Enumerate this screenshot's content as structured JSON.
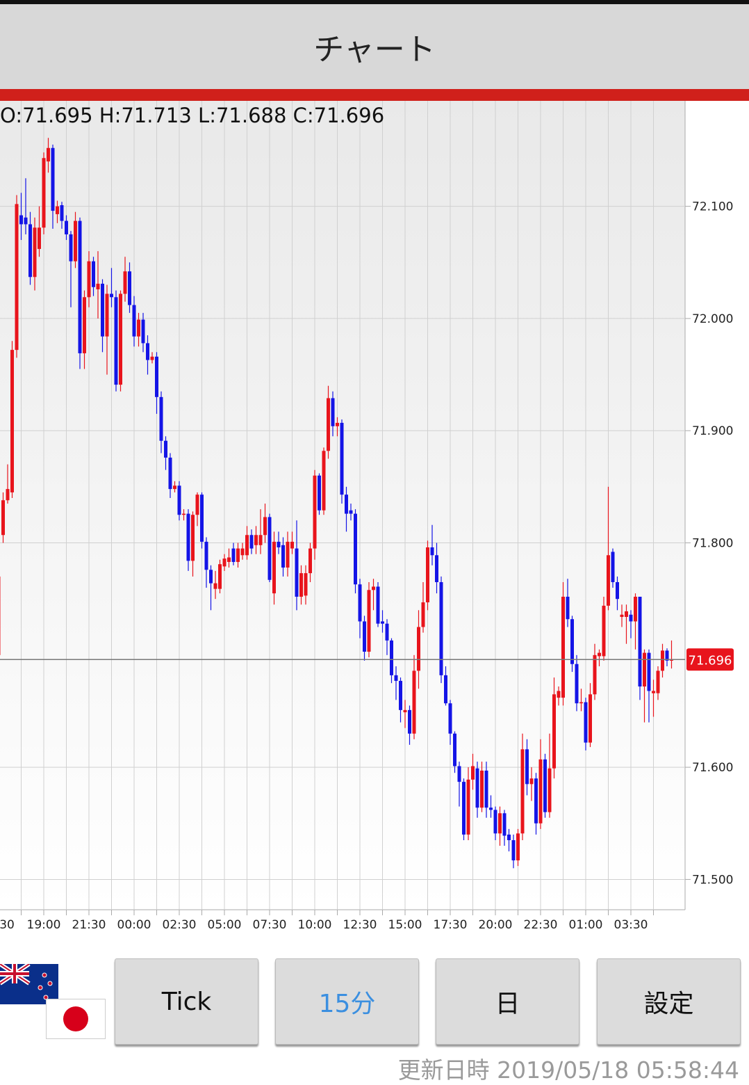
{
  "header": {
    "title": "チャート"
  },
  "chart_data": {
    "type": "candlestick",
    "ohlc_text": "O:71.695 H:71.713 L:71.688 C:71.696",
    "last_price": 71.696,
    "up_color": "#e8141c",
    "down_color": "#1414e6",
    "grid": true,
    "ylim": [
      71.473,
      72.194
    ],
    "yticks": [
      {
        "value": 71.5,
        "label": "71.500"
      },
      {
        "value": 71.6,
        "label": "71.600"
      },
      {
        "value": 71.8,
        "label": "71.800"
      },
      {
        "value": 71.9,
        "label": "71.900"
      },
      {
        "value": 72.0,
        "label": "72.000"
      },
      {
        "value": 72.1,
        "label": "72.100"
      }
    ],
    "categories": [
      "30",
      null,
      null,
      null,
      null,
      null,
      null,
      null,
      null,
      null,
      "19:00",
      null,
      null,
      null,
      null,
      null,
      null,
      null,
      null,
      null,
      "21:30",
      null,
      null,
      null,
      null,
      null,
      null,
      null,
      null,
      null,
      "00:00",
      null,
      null,
      null,
      null,
      null,
      null,
      null,
      null,
      null,
      "02:30",
      null,
      null,
      null,
      null,
      null,
      null,
      null,
      null,
      null,
      "05:00",
      null,
      null,
      null,
      null,
      null,
      null,
      null,
      null,
      null,
      "07:30",
      null,
      null,
      null,
      null,
      null,
      null,
      null,
      null,
      null,
      "10:00",
      null,
      null,
      null,
      null,
      null,
      null,
      null,
      null,
      null,
      "12:30",
      null,
      null,
      null,
      null,
      null,
      null,
      null,
      null,
      null,
      "15:00",
      null,
      null,
      null,
      null,
      null,
      null,
      null,
      null,
      null,
      "17:30",
      null,
      null,
      null,
      null,
      null,
      null,
      null,
      null,
      null,
      "20:00",
      null,
      null,
      null,
      null,
      null,
      null,
      null,
      null,
      null,
      "22:30",
      null,
      null,
      null,
      null,
      null,
      null,
      null,
      null,
      null,
      "01:00",
      null,
      null,
      null,
      null,
      null,
      null,
      null,
      null,
      null,
      "03:30",
      null,
      null,
      null,
      null,
      null,
      null,
      null,
      null,
      null
    ],
    "ohlc": [
      [
        71.7,
        71.78,
        71.69,
        71.77
      ],
      [
        71.807,
        71.845,
        71.8,
        71.838
      ],
      [
        71.838,
        71.87,
        71.835,
        71.848
      ],
      [
        71.845,
        71.98,
        71.84,
        71.972
      ],
      [
        71.972,
        72.11,
        71.965,
        72.102
      ],
      [
        72.092,
        72.112,
        72.07,
        72.084
      ],
      [
        72.09,
        72.125,
        72.075,
        72.084
      ],
      [
        72.084,
        72.095,
        72.03,
        72.037
      ],
      [
        72.037,
        72.09,
        72.025,
        72.081
      ],
      [
        72.062,
        72.1,
        72.055,
        72.081
      ],
      [
        72.081,
        72.148,
        72.075,
        72.143
      ],
      [
        72.14,
        72.161,
        72.13,
        72.152
      ],
      [
        72.152,
        72.155,
        72.08,
        72.096
      ],
      [
        72.093,
        72.105,
        72.085,
        72.1
      ],
      [
        72.101,
        72.104,
        72.08,
        72.087
      ],
      [
        72.087,
        72.092,
        72.07,
        72.075
      ],
      [
        72.075,
        72.078,
        72.01,
        72.051
      ],
      [
        72.051,
        72.095,
        72.045,
        72.087
      ],
      [
        72.087,
        72.09,
        71.955,
        71.969
      ],
      [
        71.969,
        72.025,
        71.955,
        72.019
      ],
      [
        72.019,
        72.06,
        72.01,
        72.051
      ],
      [
        72.051,
        72.055,
        72.02,
        72.028
      ],
      [
        72.026,
        72.06,
        72.0,
        72.031
      ],
      [
        72.031,
        72.035,
        71.97,
        71.984
      ],
      [
        71.984,
        72.03,
        71.95,
        72.022
      ],
      [
        72.022,
        72.045,
        72.01,
        72.019
      ],
      [
        72.019,
        72.025,
        71.935,
        71.941
      ],
      [
        71.941,
        72.025,
        71.935,
        72.022
      ],
      [
        72.022,
        72.055,
        72.015,
        72.042
      ],
      [
        72.042,
        72.05,
        72.005,
        72.012
      ],
      [
        72.012,
        72.02,
        71.975,
        71.984
      ],
      [
        71.984,
        72.005,
        71.975,
        71.999
      ],
      [
        71.999,
        72.005,
        71.97,
        71.978
      ],
      [
        71.978,
        71.985,
        71.95,
        71.963
      ],
      [
        71.963,
        71.97,
        71.96,
        71.966
      ],
      [
        71.966,
        71.97,
        71.915,
        71.93
      ],
      [
        71.93,
        71.935,
        71.88,
        71.891
      ],
      [
        71.891,
        71.895,
        71.865,
        71.876
      ],
      [
        71.876,
        71.88,
        71.84,
        71.848
      ],
      [
        71.848,
        71.855,
        71.845,
        71.851
      ],
      [
        71.851,
        71.855,
        71.82,
        71.825
      ],
      [
        71.825,
        71.83,
        71.82,
        71.826
      ],
      [
        71.826,
        71.83,
        71.775,
        71.784
      ],
      [
        71.784,
        71.828,
        71.77,
        71.825
      ],
      [
        71.825,
        71.845,
        71.815,
        71.843
      ],
      [
        71.843,
        71.845,
        71.795,
        71.801
      ],
      [
        71.801,
        71.805,
        71.76,
        71.776
      ],
      [
        71.776,
        71.78,
        71.74,
        71.764
      ],
      [
        71.759,
        71.775,
        71.75,
        71.764
      ],
      [
        71.759,
        71.785,
        71.755,
        71.781
      ],
      [
        71.779,
        71.79,
        71.775,
        71.786
      ],
      [
        71.783,
        71.795,
        71.778,
        71.787
      ],
      [
        71.795,
        71.8,
        71.78,
        71.783
      ],
      [
        71.783,
        71.8,
        71.778,
        71.795
      ],
      [
        71.789,
        71.8,
        71.785,
        71.795
      ],
      [
        71.789,
        71.815,
        71.785,
        71.807
      ],
      [
        71.807,
        71.812,
        71.79,
        71.795
      ],
      [
        71.798,
        71.815,
        71.79,
        71.807
      ],
      [
        71.798,
        71.83,
        71.79,
        71.807
      ],
      [
        71.807,
        71.835,
        71.8,
        71.823
      ],
      [
        71.823,
        71.826,
        71.765,
        71.767
      ],
      [
        71.755,
        71.81,
        71.745,
        71.801
      ],
      [
        71.801,
        71.81,
        71.79,
        71.796
      ],
      [
        71.798,
        71.805,
        71.77,
        71.778
      ],
      [
        71.778,
        71.81,
        71.77,
        71.801
      ],
      [
        71.795,
        71.81,
        71.79,
        71.801
      ],
      [
        71.795,
        71.82,
        71.74,
        71.752
      ],
      [
        71.752,
        71.78,
        71.745,
        71.773
      ],
      [
        71.753,
        71.78,
        71.745,
        71.773
      ],
      [
        71.773,
        71.8,
        71.765,
        71.795
      ],
      [
        71.795,
        71.865,
        71.785,
        71.86
      ],
      [
        71.86,
        71.862,
        71.825,
        71.829
      ],
      [
        71.829,
        71.885,
        71.825,
        71.882
      ],
      [
        71.882,
        71.94,
        71.875,
        71.929
      ],
      [
        71.929,
        71.935,
        71.895,
        71.904
      ],
      [
        71.904,
        71.912,
        71.895,
        71.907
      ],
      [
        71.907,
        71.91,
        71.835,
        71.843
      ],
      [
        71.843,
        71.85,
        71.81,
        71.826
      ],
      [
        71.829,
        71.835,
        71.82,
        71.826
      ],
      [
        71.826,
        71.83,
        71.755,
        71.763
      ],
      [
        71.763,
        71.768,
        71.715,
        71.73
      ],
      [
        71.73,
        71.735,
        71.695,
        71.703
      ],
      [
        71.703,
        71.765,
        71.698,
        71.758
      ],
      [
        71.758,
        71.768,
        71.74,
        71.761
      ],
      [
        71.761,
        71.765,
        71.725,
        71.728
      ],
      [
        71.73,
        71.74,
        71.72,
        71.728
      ],
      [
        71.728,
        71.732,
        71.7,
        71.713
      ],
      [
        71.713,
        71.715,
        71.675,
        71.682
      ],
      [
        71.682,
        71.69,
        71.66,
        71.677
      ],
      [
        71.677,
        71.68,
        71.64,
        71.651
      ],
      [
        71.649,
        71.66,
        71.635,
        71.651
      ],
      [
        71.651,
        71.655,
        71.62,
        71.63
      ],
      [
        71.63,
        71.7,
        71.625,
        71.686
      ],
      [
        71.686,
        71.74,
        71.67,
        71.725
      ],
      [
        71.725,
        71.765,
        71.72,
        71.747
      ],
      [
        71.747,
        71.802,
        71.74,
        71.796
      ],
      [
        71.796,
        71.816,
        71.78,
        71.789
      ],
      [
        71.789,
        71.8,
        71.755,
        71.765
      ],
      [
        71.765,
        71.77,
        71.675,
        71.682
      ],
      [
        71.682,
        71.69,
        71.655,
        71.657
      ],
      [
        71.657,
        71.66,
        71.62,
        71.63
      ],
      [
        71.63,
        71.632,
        71.595,
        71.601
      ],
      [
        71.601,
        71.605,
        71.565,
        71.587
      ],
      [
        71.587,
        71.59,
        71.535,
        71.54
      ],
      [
        71.54,
        71.6,
        71.535,
        71.589
      ],
      [
        71.589,
        71.612,
        71.58,
        71.601
      ],
      [
        71.599,
        71.605,
        71.555,
        71.564
      ],
      [
        71.564,
        71.605,
        71.56,
        71.597
      ],
      [
        71.597,
        71.605,
        71.555,
        71.564
      ],
      [
        71.564,
        71.575,
        71.555,
        71.562
      ],
      [
        71.562,
        71.565,
        71.535,
        71.541
      ],
      [
        71.541,
        71.565,
        71.53,
        71.559
      ],
      [
        71.559,
        71.562,
        71.53,
        71.539
      ],
      [
        71.54,
        71.545,
        71.525,
        71.535
      ],
      [
        71.535,
        71.54,
        71.51,
        71.517
      ],
      [
        71.517,
        71.545,
        71.512,
        71.541
      ],
      [
        71.541,
        71.63,
        71.535,
        71.616
      ],
      [
        71.616,
        71.625,
        71.575,
        71.585
      ],
      [
        71.585,
        71.6,
        71.57,
        71.59
      ],
      [
        71.59,
        71.595,
        71.54,
        71.55
      ],
      [
        71.55,
        71.625,
        71.545,
        71.607
      ],
      [
        71.607,
        71.612,
        71.555,
        71.56
      ],
      [
        71.56,
        71.63,
        71.555,
        71.599
      ],
      [
        71.599,
        71.68,
        71.59,
        71.665
      ],
      [
        71.662,
        71.672,
        71.655,
        71.668
      ],
      [
        71.662,
        71.765,
        71.655,
        71.752
      ],
      [
        71.752,
        71.768,
        71.725,
        71.732
      ],
      [
        71.732,
        71.735,
        71.685,
        71.692
      ],
      [
        71.692,
        71.7,
        71.65,
        71.657
      ],
      [
        71.657,
        71.67,
        71.65,
        71.658
      ],
      [
        71.658,
        71.662,
        71.615,
        71.622
      ],
      [
        71.622,
        71.675,
        71.618,
        71.665
      ],
      [
        71.665,
        71.71,
        71.66,
        71.7
      ],
      [
        71.699,
        71.705,
        71.69,
        71.702
      ],
      [
        71.699,
        71.752,
        71.695,
        71.744
      ],
      [
        71.744,
        71.85,
        71.74,
        71.789
      ],
      [
        71.792,
        71.795,
        71.76,
        71.765
      ],
      [
        71.765,
        71.77,
        71.74,
        71.75
      ],
      [
        71.734,
        71.745,
        71.725,
        71.736
      ],
      [
        71.734,
        71.745,
        71.71,
        71.739
      ],
      [
        71.736,
        71.74,
        71.715,
        71.73
      ],
      [
        71.73,
        71.755,
        71.705,
        71.752
      ],
      [
        71.752,
        71.752,
        71.66,
        71.672
      ],
      [
        71.672,
        71.705,
        71.64,
        71.702
      ],
      [
        71.702,
        71.705,
        71.64,
        71.668
      ],
      [
        71.666,
        71.678,
        71.645,
        71.668
      ],
      [
        71.666,
        71.69,
        71.66,
        71.686
      ],
      [
        71.686,
        71.71,
        71.68,
        71.704
      ],
      [
        71.704,
        71.706,
        71.69,
        71.695
      ],
      [
        71.695,
        71.713,
        71.688,
        71.696
      ]
    ]
  },
  "buttons": [
    "Tick",
    "15分",
    "日",
    "設定"
  ],
  "footer": "更新日時 2019/05/18 05:58:44"
}
